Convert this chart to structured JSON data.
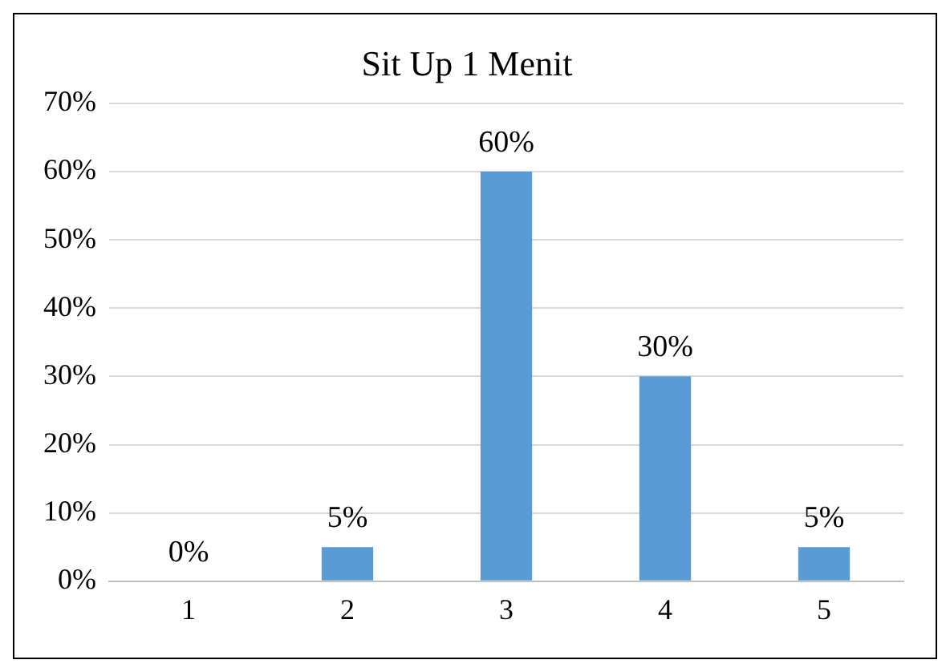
{
  "chart_data": {
    "type": "bar",
    "title": "Sit Up 1 Menit",
    "categories": [
      "1",
      "2",
      "3",
      "4",
      "5"
    ],
    "values": [
      0,
      5,
      60,
      30,
      5
    ],
    "value_labels": [
      "0%",
      "5%",
      "60%",
      "30%",
      "5%"
    ],
    "color": "#5b9bd5",
    "ylim": [
      0,
      70
    ],
    "yticks": [
      {
        "value": 0,
        "label": "0%"
      },
      {
        "value": 10,
        "label": "10%"
      },
      {
        "value": 20,
        "label": "20%"
      },
      {
        "value": 30,
        "label": "30%"
      },
      {
        "value": 40,
        "label": "40%"
      },
      {
        "value": 50,
        "label": "50%"
      },
      {
        "value": 60,
        "label": "60%"
      },
      {
        "value": 70,
        "label": "70%"
      }
    ],
    "grid": "y"
  }
}
